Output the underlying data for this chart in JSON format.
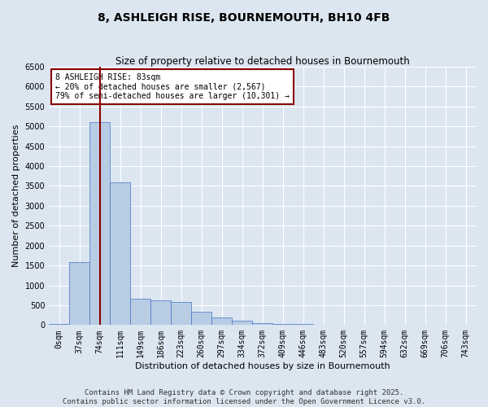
{
  "title": "8, ASHLEIGH RISE, BOURNEMOUTH, BH10 4FB",
  "subtitle": "Size of property relative to detached houses in Bournemouth",
  "xlabel": "Distribution of detached houses by size in Bournemouth",
  "ylabel": "Number of detached properties",
  "bin_labels": [
    "0sqm",
    "37sqm",
    "74sqm",
    "111sqm",
    "149sqm",
    "186sqm",
    "223sqm",
    "260sqm",
    "297sqm",
    "334sqm",
    "372sqm",
    "409sqm",
    "446sqm",
    "483sqm",
    "520sqm",
    "557sqm",
    "594sqm",
    "632sqm",
    "669sqm",
    "706sqm",
    "743sqm"
  ],
  "bar_values": [
    25,
    1580,
    5100,
    3600,
    660,
    620,
    580,
    340,
    190,
    100,
    50,
    28,
    18,
    10,
    5,
    3,
    2,
    1,
    1,
    1,
    0
  ],
  "bar_color": "#b8cce4",
  "bar_edge_color": "#4472c4",
  "vline_color": "#8B0000",
  "vline_x": 2.0,
  "ylim": [
    0,
    6500
  ],
  "yticks": [
    0,
    500,
    1000,
    1500,
    2000,
    2500,
    3000,
    3500,
    4000,
    4500,
    5000,
    5500,
    6000,
    6500
  ],
  "annotation_text": "8 ASHLEIGH RISE: 83sqm\n← 20% of detached houses are smaller (2,567)\n79% of semi-detached houses are larger (10,301) →",
  "annotation_box_facecolor": "#ffffff",
  "annotation_box_edgecolor": "#8B0000",
  "footer_line1": "Contains HM Land Registry data © Crown copyright and database right 2025.",
  "footer_line2": "Contains public sector information licensed under the Open Government Licence v3.0.",
  "bg_color": "#dce6f1",
  "title_fontsize": 10,
  "subtitle_fontsize": 8.5,
  "axis_label_fontsize": 8,
  "tick_fontsize": 7,
  "footer_fontsize": 6.5
}
